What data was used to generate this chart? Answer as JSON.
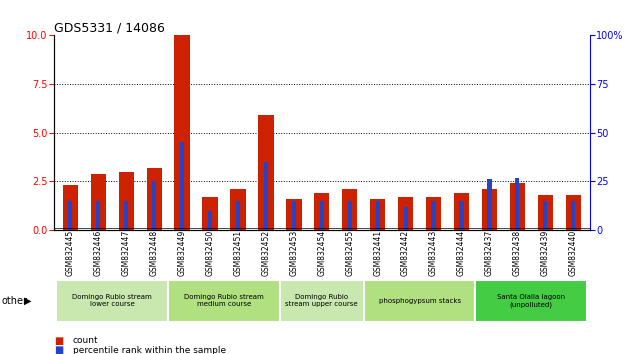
{
  "title": "GDS5331 / 14086",
  "samples": [
    "GSM832445",
    "GSM832446",
    "GSM832447",
    "GSM832448",
    "GSM832449",
    "GSM832450",
    "GSM832451",
    "GSM832452",
    "GSM832453",
    "GSM832454",
    "GSM832455",
    "GSM832441",
    "GSM832442",
    "GSM832443",
    "GSM832444",
    "GSM832437",
    "GSM832438",
    "GSM832439",
    "GSM832440"
  ],
  "count_values": [
    2.3,
    2.9,
    3.0,
    3.2,
    10.0,
    1.7,
    2.1,
    5.9,
    1.6,
    1.9,
    2.1,
    1.6,
    1.7,
    1.7,
    1.9,
    2.1,
    2.4,
    1.8,
    1.8
  ],
  "percentile_values": [
    15,
    15,
    15,
    25,
    45,
    10,
    15,
    35,
    15,
    15,
    15,
    15,
    12,
    15,
    15,
    26,
    27,
    15,
    15
  ],
  "groups": [
    {
      "label": "Domingo Rubio stream\nlower course",
      "start": 0,
      "end": 4,
      "color": "#c8e8b0"
    },
    {
      "label": "Domingo Rubio stream\nmedium course",
      "start": 4,
      "end": 8,
      "color": "#b0e080"
    },
    {
      "label": "Domingo Rubio\nstream upper course",
      "start": 8,
      "end": 11,
      "color": "#c8e8b0"
    },
    {
      "label": "phosphogypsum stacks",
      "start": 11,
      "end": 15,
      "color": "#b0e080"
    },
    {
      "label": "Santa Olalla lagoon\n(unpolluted)",
      "start": 15,
      "end": 19,
      "color": "#44cc44"
    }
  ],
  "bar_color_red": "#cc2200",
  "bar_color_blue": "#2244cc",
  "ylim_left": [
    0,
    10
  ],
  "ylim_right": [
    0,
    100
  ],
  "yticks_left": [
    0,
    2.5,
    5.0,
    7.5,
    10
  ],
  "yticks_right": [
    0,
    25,
    50,
    75,
    100
  ],
  "background_color": "#ffffff",
  "tick_area_color": "#c8c8c8"
}
